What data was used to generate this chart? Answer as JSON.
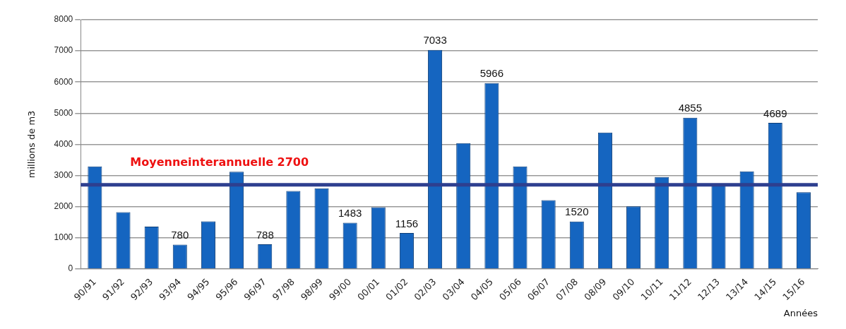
{
  "chart_data": {
    "type": "bar",
    "ylabel": "millions de m3",
    "xlabel": "Années",
    "categories": [
      "90/91",
      "91/92",
      "92/93",
      "93/94",
      "94/95",
      "95/96",
      "96/97",
      "97/98",
      "98/99",
      "99/00",
      "00/01",
      "01/02",
      "02/03",
      "03/04",
      "04/05",
      "05/06",
      "06/07",
      "07/08",
      "08/09",
      "09/10",
      "10/11",
      "11/12",
      "12/13",
      "13/14",
      "14/15",
      "15/16"
    ],
    "values": [
      3290,
      1820,
      1360,
      780,
      1530,
      3120,
      788,
      2500,
      2590,
      1483,
      1980,
      1156,
      7033,
      4040,
      5966,
      3290,
      2210,
      1520,
      4380,
      2010,
      2950,
      4855,
      2690,
      3130,
      4689,
      2460
    ],
    "value_labels": [
      null,
      null,
      null,
      "780",
      null,
      null,
      "788",
      null,
      null,
      "1483",
      null,
      "1156",
      "7033",
      null,
      "5966",
      null,
      null,
      "1520",
      null,
      null,
      null,
      "4855",
      null,
      null,
      "4689",
      null
    ],
    "color": "#1565c0",
    "ylim": [
      0,
      8000
    ],
    "yticks": [
      0,
      1000,
      2000,
      3000,
      4000,
      5000,
      6000,
      7000,
      8000
    ],
    "grid": "y",
    "ref_lines": [
      {
        "axis": "y",
        "value": 2700,
        "label": "Moyenneinterannuelle 2700",
        "color": "#2e3f8f"
      }
    ],
    "legend": false
  }
}
